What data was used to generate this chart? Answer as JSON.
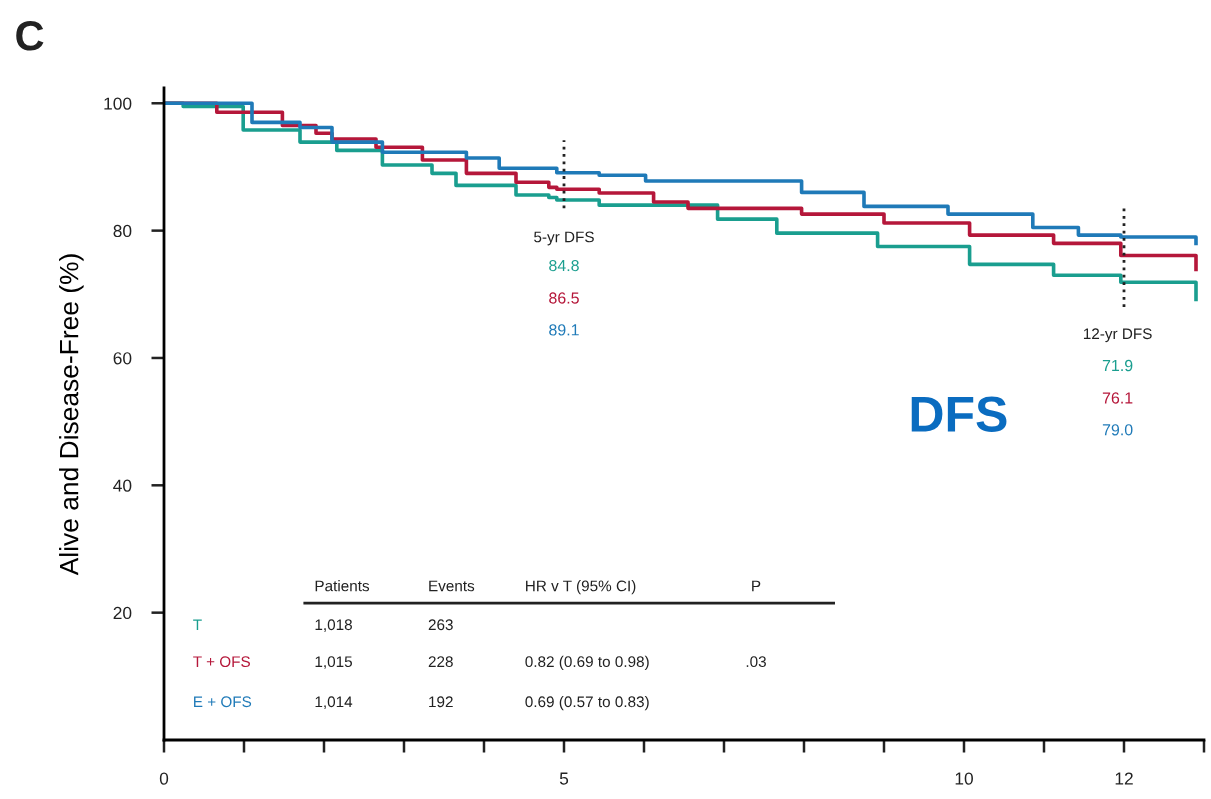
{
  "chart_data": {
    "type": "step",
    "ylabel": "Alive and Disease-Free (%)",
    "xlim": [
      0,
      13
    ],
    "ylim": [
      0,
      102.4
    ],
    "xticks": [
      0,
      {
        "value": 1,
        "label": null
      },
      {
        "value": 2,
        "label": null
      },
      {
        "value": 3,
        "label": null
      },
      {
        "value": 4,
        "label": null
      },
      5,
      {
        "value": 6,
        "label": null
      },
      {
        "value": 7,
        "label": null
      },
      {
        "value": 8,
        "label": null
      },
      {
        "value": 9,
        "label": null
      },
      10,
      {
        "value": 11,
        "label": null
      },
      12,
      {
        "value": 13,
        "label": null
      }
    ],
    "yticks": [
      20,
      40,
      60,
      80,
      100
    ],
    "grid": false,
    "legend": false,
    "line_style": "solid",
    "marker": "none",
    "series": [
      {
        "name": "T",
        "color": "#1a9e8f",
        "x": [
          0,
          0.24,
          0.99,
          1.7,
          2.16,
          2.73,
          3.35,
          3.65,
          4.4,
          4.81,
          4.91,
          5.44,
          6.92,
          7.66,
          8.92,
          10.07,
          11.12,
          11.96,
          12.9
        ],
        "values": [
          100,
          99.5,
          95.8,
          93.9,
          92.6,
          90.3,
          89.0,
          87.1,
          85.6,
          85.2,
          84.8,
          84.0,
          81.8,
          79.6,
          77.5,
          74.7,
          73.0,
          71.9,
          69.2
        ]
      },
      {
        "name": "T + OFS",
        "color": "#b5173a",
        "x": [
          0,
          0.66,
          1.48,
          1.9,
          2.1,
          2.65,
          3.23,
          3.78,
          4.4,
          4.81,
          4.91,
          5.44,
          6.12,
          6.55,
          7.97,
          9.0,
          10.07,
          11.12,
          11.96,
          12.9
        ],
        "values": [
          100,
          98.6,
          96.5,
          95.3,
          94.4,
          93.1,
          91.1,
          89.0,
          87.6,
          86.8,
          86.5,
          85.9,
          84.5,
          83.5,
          82.6,
          81.2,
          79.3,
          78.0,
          76.1,
          73.9
        ]
      },
      {
        "name": "E + OFS",
        "color": "#1f7ab8",
        "x": [
          0,
          1.1,
          1.7,
          2.1,
          2.73,
          3.78,
          4.19,
          4.91,
          5.44,
          6.02,
          7.97,
          8.75,
          9.8,
          10.86,
          11.43,
          11.96,
          12.9
        ],
        "values": [
          100,
          97,
          96.2,
          93.9,
          92.3,
          91.4,
          89.8,
          89.1,
          88.7,
          87.8,
          86.0,
          83.8,
          82.6,
          80.5,
          79.3,
          79.0,
          78.0
        ]
      }
    ],
    "ref_lines": [
      {
        "axis": "x",
        "value": 5,
        "color": "#222222",
        "line_style": "dotted"
      },
      {
        "axis": "x",
        "value": 12,
        "color": "#222222",
        "line_style": "dotted"
      }
    ],
    "annotations": [
      "C",
      "DFS",
      "5-yr DFS",
      "84.8",
      "86.5",
      "89.1",
      "12-yr DFS",
      "71.9",
      "76.1",
      "79.0",
      "Patients",
      "Events",
      "HR v T (95% CI)",
      "P",
      "1,018",
      "263",
      "1,015",
      "228",
      "0.82 (0.69 to 0.98)",
      ".03",
      "1,014",
      "192",
      "0.69 (0.57 to 0.83)"
    ]
  }
}
